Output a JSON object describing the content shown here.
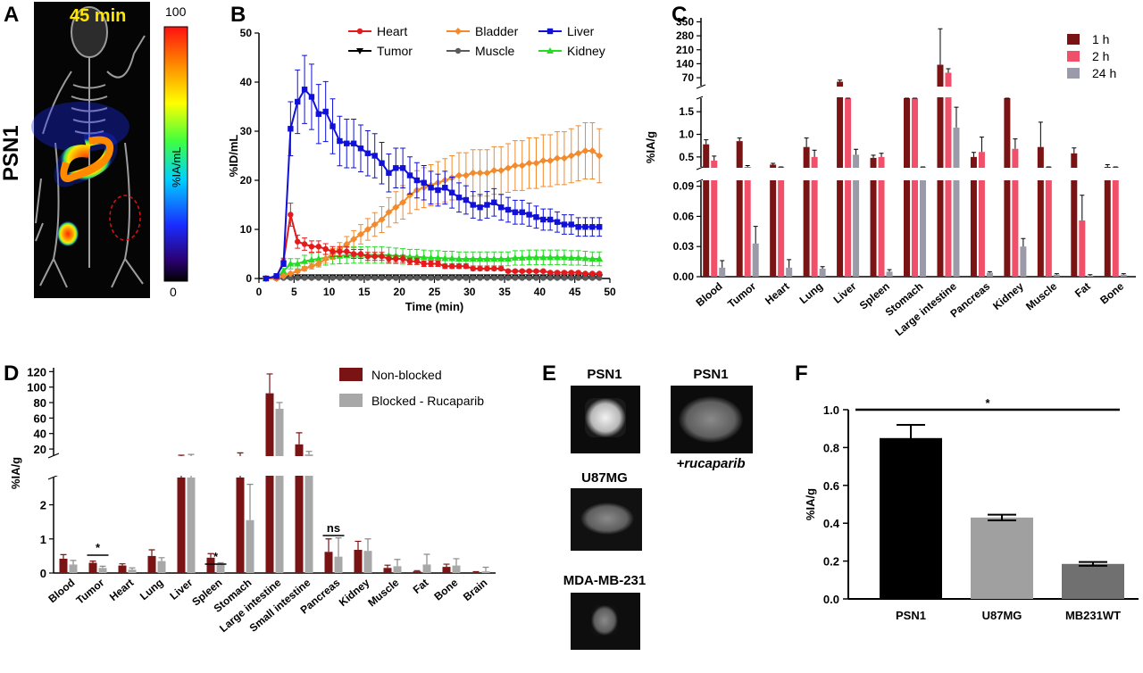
{
  "panel_letters": {
    "a": "A",
    "b": "B",
    "c": "C",
    "d": "D",
    "e": "E",
    "f": "F"
  },
  "panel_a": {
    "time_label": "45 min",
    "side_label": "PSN1",
    "colorbar_max": "100",
    "colorbar_min": "0",
    "colorbar_label": "%IA/mL"
  },
  "panel_e": {
    "labels": [
      "PSN1",
      "PSN1",
      "U87MG",
      "MDA-MB-231"
    ],
    "caption": "+rucaparib"
  },
  "colors": {
    "heart": "#e41a1c",
    "tumor": "#000000",
    "bladder": "#f28a2e",
    "muscle": "#5a5a5a",
    "liver": "#1010d8",
    "kidney": "#22dd22",
    "h1": "#7a1313",
    "h2": "#f0506a",
    "h24": "#9a9aa8",
    "nonblocked": "#7a1313",
    "blocked": "#a8a8a8",
    "psn1": "#000000",
    "u87": "#a0a0a0",
    "mb231": "#707070"
  },
  "chart_data": [
    {
      "id": "B",
      "type": "line",
      "xlabel": "Time (min)",
      "ylabel": "%ID/mL",
      "xlim": [
        0,
        50
      ],
      "ylim": [
        0,
        50
      ],
      "xticks": [
        0,
        5,
        10,
        15,
        20,
        25,
        30,
        35,
        40,
        45,
        50
      ],
      "yticks": [
        0,
        10,
        20,
        30,
        40,
        50
      ],
      "x": [
        1,
        2.5,
        3.5,
        4.5,
        5.5,
        6.5,
        7.5,
        8.5,
        9.5,
        10.5,
        11.5,
        12.5,
        13.5,
        14.5,
        15.5,
        16.5,
        17.5,
        18.5,
        19.5,
        20.5,
        21.5,
        22.5,
        23.5,
        24.5,
        25.5,
        26.5,
        27.5,
        28.5,
        29.5,
        30.5,
        31.5,
        32.5,
        33.5,
        34.5,
        35.5,
        36.5,
        37.5,
        38.5,
        39.5,
        40.5,
        41.5,
        42.5,
        43.5,
        44.5,
        45.5,
        46.5,
        47.5,
        48.5
      ],
      "series": [
        {
          "name": "Heart",
          "key": "heart",
          "marker": "circle",
          "values": [
            0,
            0.3,
            3.5,
            13,
            7.5,
            7,
            6.5,
            6.5,
            6,
            5.5,
            5.5,
            5.5,
            5,
            5,
            4.5,
            4.5,
            4.5,
            4,
            4,
            4,
            3.5,
            3.5,
            3,
            3,
            3,
            2.5,
            2.5,
            2.5,
            2.5,
            2,
            2,
            2,
            2,
            2,
            1.5,
            1.5,
            1.5,
            1.5,
            1.5,
            1.5,
            1.2,
            1.2,
            1.2,
            1.2,
            1.2,
            1,
            1,
            1
          ]
        },
        {
          "name": "Tumor",
          "key": "tumor",
          "marker": "tri-down",
          "values": [
            0,
            0.1,
            0.3,
            0.3,
            0.3,
            0.3,
            0.3,
            0.3,
            0.3,
            0.3,
            0.3,
            0.3,
            0.3,
            0.3,
            0.3,
            0.3,
            0.3,
            0.3,
            0.3,
            0.3,
            0.3,
            0.3,
            0.3,
            0.3,
            0.3,
            0.3,
            0.3,
            0.3,
            0.3,
            0.3,
            0.3,
            0.3,
            0.3,
            0.3,
            0.3,
            0.3,
            0.3,
            0.3,
            0.3,
            0.3,
            0.3,
            0.3,
            0.3,
            0.3,
            0.3,
            0.3,
            0.3,
            0.3
          ]
        },
        {
          "name": "Bladder",
          "key": "bladder",
          "marker": "diamond",
          "values": [
            0,
            0,
            0.5,
            1,
            1.5,
            2,
            2.5,
            3,
            4,
            5,
            6,
            7,
            8,
            9,
            10,
            11,
            12,
            13.5,
            14.5,
            15.5,
            17,
            18,
            18.5,
            19,
            19.5,
            20,
            20.5,
            21,
            21,
            21.5,
            21.5,
            21.5,
            22,
            22,
            22.5,
            23,
            23,
            23.5,
            23.5,
            24,
            24,
            24.5,
            24.5,
            25,
            25.5,
            26,
            26,
            25
          ]
        },
        {
          "name": "Muscle",
          "key": "muscle",
          "marker": "circle",
          "values": [
            0,
            0,
            0.1,
            0.1,
            0.1,
            0.1,
            0.1,
            0.1,
            0.1,
            0.1,
            0.1,
            0.1,
            0.1,
            0.1,
            0.1,
            0.1,
            0.1,
            0.1,
            0.1,
            0.1,
            0.1,
            0.1,
            0.1,
            0.1,
            0.1,
            0.1,
            0.1,
            0.1,
            0.1,
            0.1,
            0.1,
            0.1,
            0.1,
            0.1,
            0.1,
            0.1,
            0.1,
            0.1,
            0.1,
            0.1,
            0.1,
            0.1,
            0.1,
            0.1,
            0.1,
            0.1,
            0.1,
            0.1
          ]
        },
        {
          "name": "Liver",
          "key": "liver",
          "marker": "square",
          "values": [
            0,
            0.5,
            3,
            30.5,
            36,
            38.5,
            37,
            33.5,
            34,
            31,
            28,
            27.5,
            27.5,
            26.5,
            25.5,
            25,
            23.5,
            21.5,
            22.5,
            22.5,
            21,
            20,
            19.5,
            18.5,
            18,
            18.5,
            17.5,
            16.5,
            16,
            15,
            14.5,
            15,
            15.5,
            14.5,
            14,
            13.5,
            13.5,
            13,
            12.5,
            12,
            12,
            11.5,
            11,
            11,
            10.5,
            10.5,
            10.5,
            10.5
          ]
        },
        {
          "name": "Kidney",
          "key": "kidney",
          "marker": "tri-up",
          "values": [
            0,
            0.2,
            1.5,
            3,
            3,
            3.5,
            3.8,
            4,
            4.2,
            4.5,
            4.6,
            4.7,
            4.8,
            4.8,
            4.8,
            4.8,
            4.8,
            4.7,
            4.6,
            4.5,
            4.4,
            4.4,
            4.3,
            4.2,
            4.2,
            4.1,
            4.1,
            4,
            4,
            4,
            4,
            4,
            4,
            4,
            4,
            4.2,
            4.2,
            4.3,
            4.3,
            4.3,
            4.3,
            4.3,
            4.3,
            4.2,
            4.2,
            4.1,
            4,
            4
          ]
        }
      ]
    },
    {
      "id": "C",
      "type": "bar",
      "ylabel": "%IA/g",
      "categories": [
        "Blood",
        "Tumor",
        "Heart",
        "Lung",
        "Liver",
        "Spleen",
        "Stomach",
        "Large intestine",
        "Pancreas",
        "Kidney",
        "Muscle",
        "Fat",
        "Bone"
      ],
      "yticks_top": [
        "350",
        "280",
        "210",
        "140",
        "70"
      ],
      "yticks_mid": [
        "1.5",
        "1.0",
        "0.5"
      ],
      "yticks_bot": [
        "0.09",
        "0.06",
        "0.03",
        "0.00"
      ],
      "series": [
        {
          "name": "1 h",
          "key": "h1",
          "values": [
            0.78,
            0.85,
            0.33,
            0.72,
            50,
            0.48,
            1.9,
            135,
            0.5,
            2.0,
            0.72,
            0.58,
            0.25
          ],
          "errors": [
            0.1,
            0.07,
            0.03,
            0.2,
            8,
            0.06,
            0.2,
            180,
            0.1,
            0.3,
            0.55,
            0.12,
            0.08
          ]
        },
        {
          "name": "2 h",
          "key": "h2",
          "values": [
            0.42,
            0.28,
            0.2,
            0.5,
            4,
            0.5,
            5.6,
            95,
            0.61,
            0.68,
            0.15,
            0.056,
            0.18
          ],
          "errors": [
            0.1,
            0.03,
            0.05,
            0.15,
            1.5,
            0.08,
            1.5,
            20,
            0.33,
            0.22,
            0.05,
            0.025,
            0.05
          ]
        },
        {
          "name": "24 h",
          "key": "h24",
          "values": [
            0.009,
            0.033,
            0.009,
            0.008,
            0.55,
            0.005,
            0.15,
            1.15,
            0.004,
            0.03,
            0.002,
            0.001,
            0.002
          ],
          "errors": [
            0.007,
            0.017,
            0.008,
            0.002,
            0.12,
            0.002,
            0.05,
            0.45,
            0.001,
            0.008,
            0.001,
            0.001,
            0.001
          ]
        }
      ]
    },
    {
      "id": "D",
      "type": "bar",
      "ylabel": "%IA/g",
      "categories": [
        "Blood",
        "Tumor",
        "Heart",
        "Lung",
        "Liver",
        "Spleen",
        "Stomach",
        "Large intestine",
        "Small intestine",
        "Pancreas",
        "Kidney",
        "Muscle",
        "Fat",
        "Bone",
        "Brain"
      ],
      "yticks_top": [
        "120",
        "100",
        "80",
        "60",
        "40",
        "20"
      ],
      "yticks_bot": [
        "2",
        "1",
        "0"
      ],
      "annotations": [
        "*",
        "*",
        "ns"
      ],
      "series": [
        {
          "name": "Non-blocked",
          "key": "nonblocked",
          "values": [
            0.42,
            0.3,
            0.22,
            0.5,
            10,
            0.45,
            10,
            92,
            26,
            0.62,
            0.68,
            0.15,
            0.05,
            0.18,
            0.02
          ],
          "errors": [
            0.12,
            0.05,
            0.05,
            0.18,
            2,
            0.12,
            5,
            25,
            15,
            0.38,
            0.25,
            0.08,
            0.02,
            0.08,
            0.02
          ]
        },
        {
          "name": "Blocked - Rucaparib",
          "key": "blocked",
          "values": [
            0.25,
            0.15,
            0.1,
            0.35,
            10,
            0.25,
            1.55,
            72,
            13,
            0.48,
            0.65,
            0.2,
            0.25,
            0.22,
            0.05
          ],
          "errors": [
            0.12,
            0.05,
            0.05,
            0.1,
            3,
            0.05,
            1.05,
            8,
            4,
            0.55,
            0.35,
            0.2,
            0.3,
            0.2,
            0.12
          ]
        }
      ]
    },
    {
      "id": "F",
      "type": "bar",
      "ylabel": "%IA/g",
      "categories": [
        "PSN1",
        "U87MG",
        "MB231WT"
      ],
      "values": [
        0.85,
        0.43,
        0.185
      ],
      "errors": [
        0.07,
        0.015,
        0.01
      ],
      "ylim": [
        0,
        1.0
      ],
      "yticks": [
        "0.0",
        "0.2",
        "0.4",
        "0.6",
        "0.8",
        "1.0"
      ],
      "annotation": "*"
    }
  ]
}
